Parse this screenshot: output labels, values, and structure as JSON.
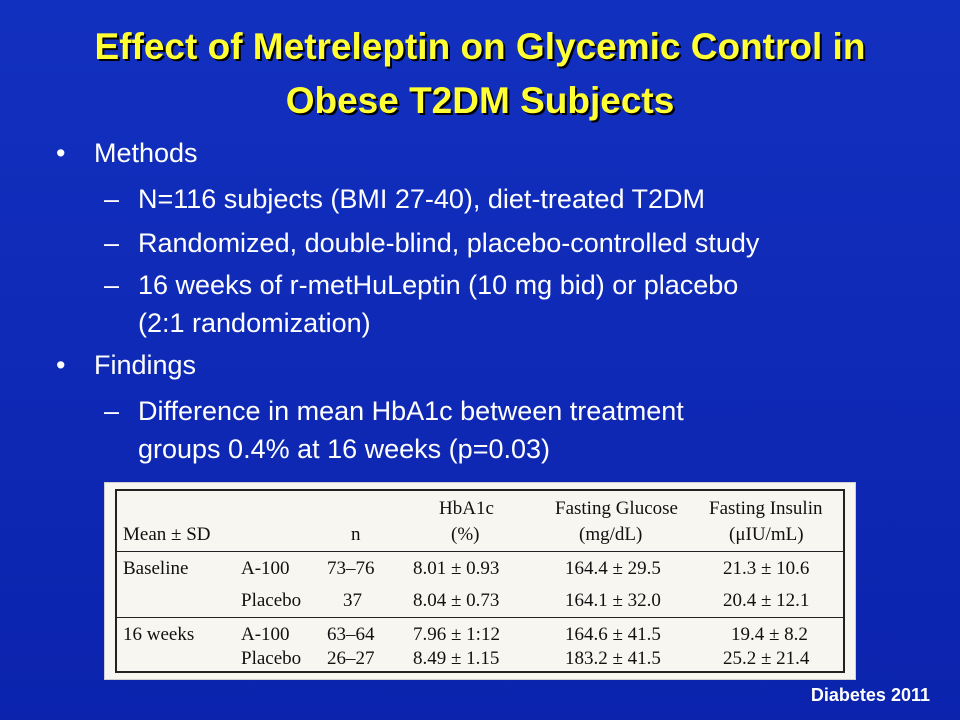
{
  "title": {
    "line1": "Effect of Metreleptin on Glycemic Control in",
    "line2": "Obese T2DM Subjects"
  },
  "bullets": [
    {
      "label": "Methods",
      "subs": [
        "N=116 subjects (BMI 27-40), diet-treated T2DM",
        "Randomized, double-blind, placebo-controlled study",
        "16 weeks of r-metHuLeptin (10 mg bid) or placebo",
        "(2:1 randomization)"
      ]
    },
    {
      "label": "Findings",
      "subs": [
        "Difference in mean HbA1c between treatment",
        "groups 0.4% at 16 weeks (p=0.03)"
      ]
    }
  ],
  "table": {
    "header_row1": [
      "",
      "",
      "HbA1c",
      "Fasting Glucose",
      "Fasting Insulin"
    ],
    "header_row2": [
      "Mean ± SD",
      "n",
      "(%)",
      "(mg/dL)",
      "(μIU/mL)"
    ],
    "rows": [
      [
        "Baseline",
        "A-100",
        "73–76",
        "8.01 ± 0.93",
        "164.4 ± 29.5",
        "21.3 ± 10.6"
      ],
      [
        "",
        "Placebo",
        "37",
        "8.04 ± 0.73",
        "164.1 ± 32.0",
        "20.4 ± 12.1"
      ],
      [
        "16 weeks",
        "A-100",
        "63–64",
        "7.96 ± 1:12",
        "164.6 ± 41.5",
        "19.4 ± 8.2"
      ],
      [
        "",
        "Placebo",
        "26–27",
        "8.49 ± 1.15",
        "183.2 ± 41.5",
        "25.2 ± 21.4"
      ]
    ]
  },
  "citation": "Diabetes 2011",
  "colors": {
    "background": "#0f28b4",
    "title": "#ffff33",
    "text": "#ffffff"
  }
}
